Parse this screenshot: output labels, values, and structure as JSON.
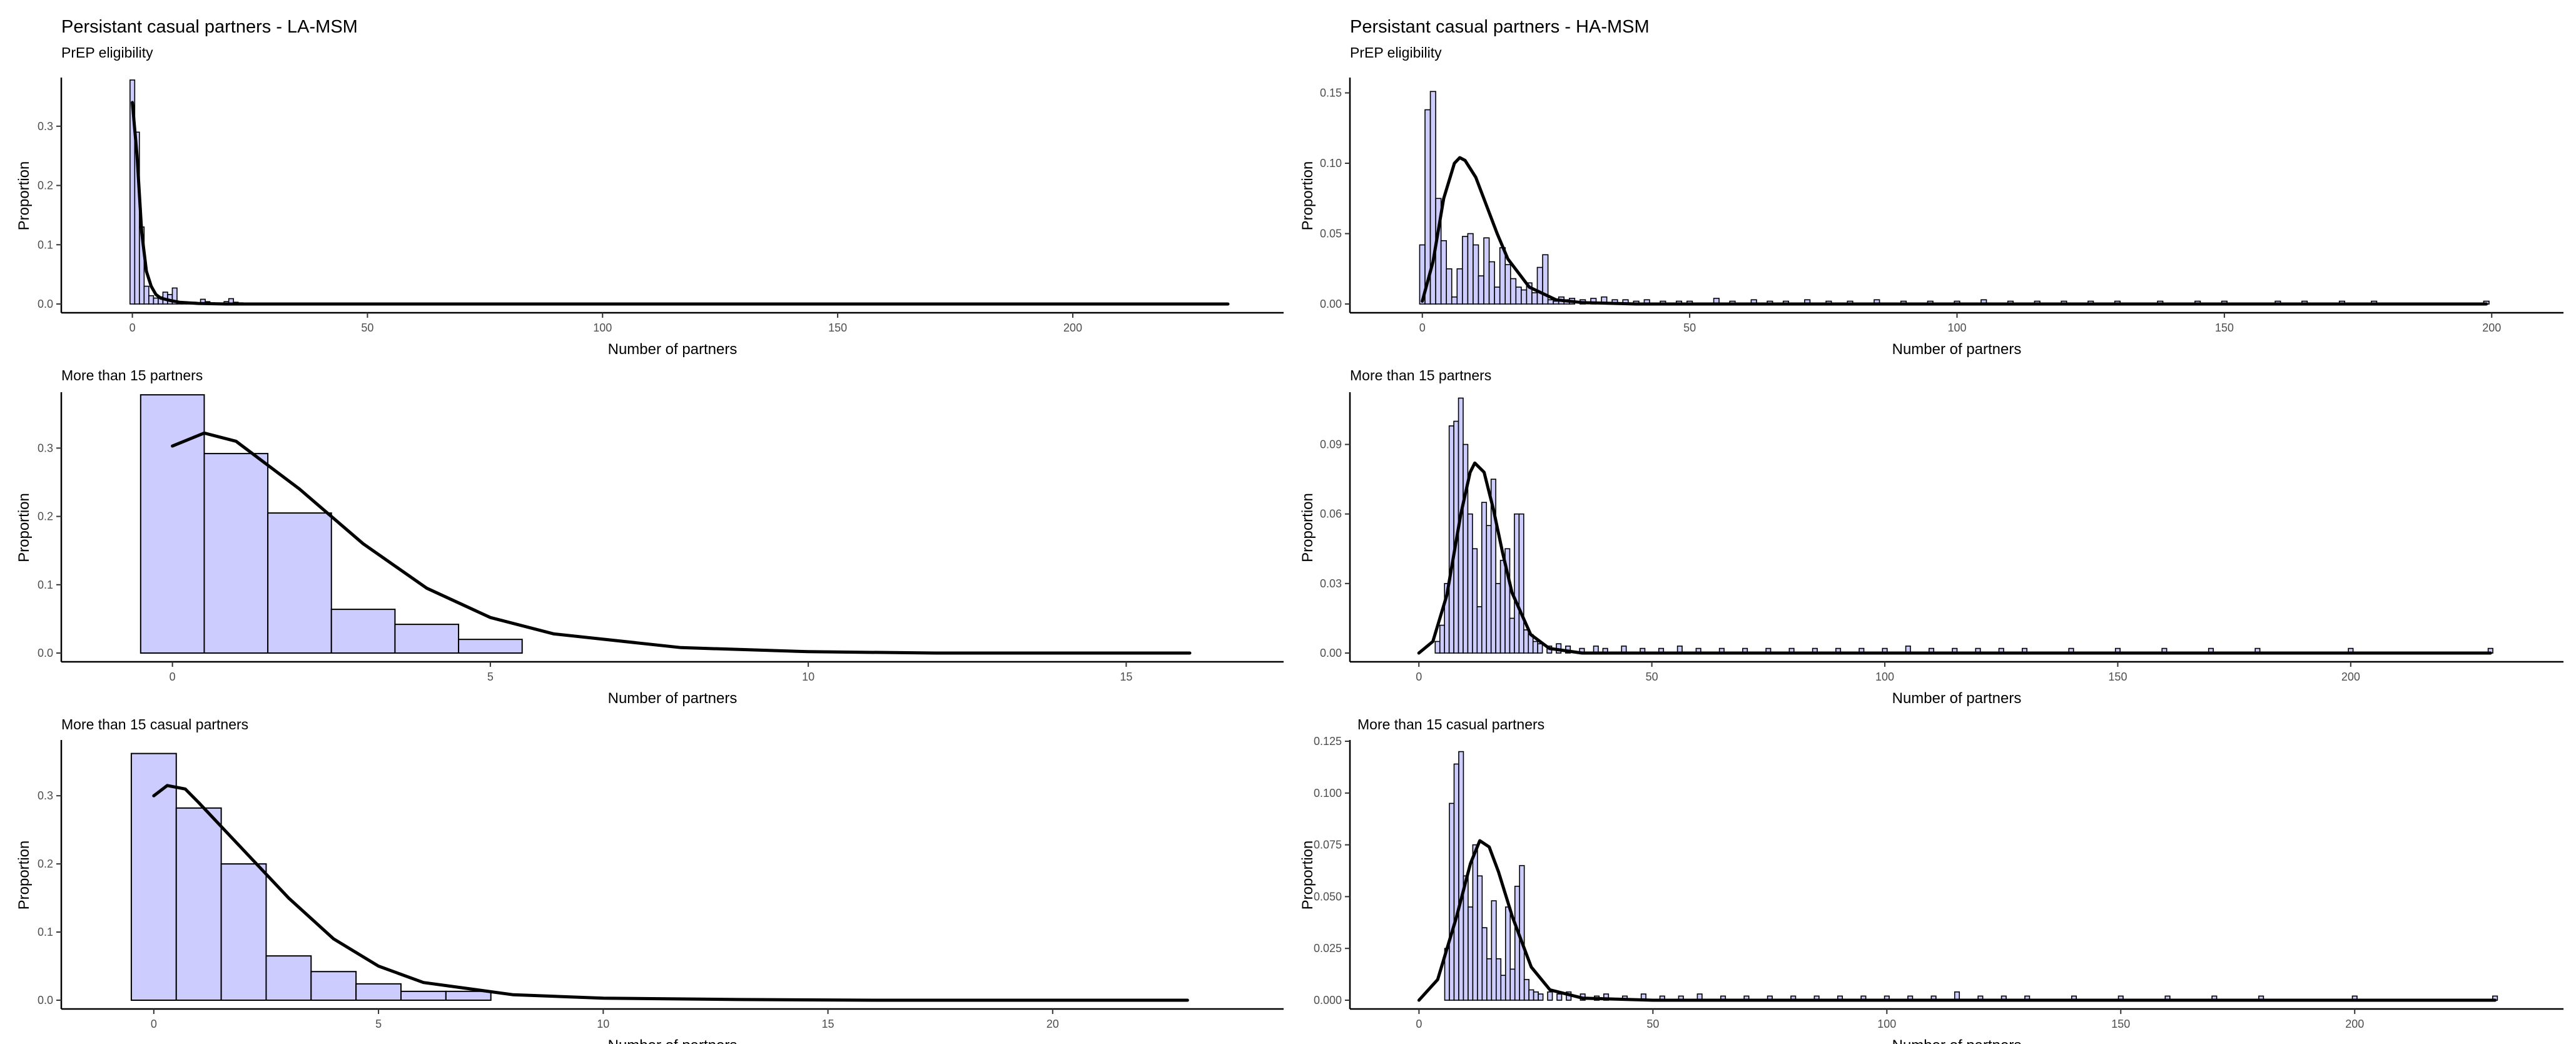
{
  "chart_data": [
    {
      "type": "bar",
      "title": "Persistant casual partners - LA-MSM",
      "subtitle": "PrEP eligibility",
      "xlabel": "Number of partners",
      "ylabel": "Proportion",
      "xlim": [
        -5,
        233
      ],
      "ylim": [
        0,
        0.38
      ],
      "xticks": [
        0,
        50,
        100,
        150,
        200
      ],
      "yticks": [
        0.0,
        0.1,
        0.2,
        0.3
      ],
      "yticklabels": [
        "0.0",
        "0.1",
        "0.2",
        "0.3"
      ],
      "x": [
        0,
        1,
        2,
        3,
        4,
        5,
        6,
        7,
        8,
        9,
        10,
        11,
        12,
        13,
        14,
        15,
        16,
        17,
        18,
        19,
        20,
        21,
        22,
        23,
        24,
        25
      ],
      "values": [
        0.378,
        0.29,
        0.13,
        0.03,
        0.014,
        0.01,
        0.012,
        0.02,
        0.016,
        0.027,
        0.004,
        0.003,
        0.002,
        0.003,
        0.002,
        0.008,
        0.004,
        0.002,
        0.001,
        0.0,
        0.004,
        0.009,
        0.003,
        0.002,
        0.001,
        0.0
      ],
      "curve": {
        "x": [
          0,
          1,
          2,
          3,
          4,
          5,
          6,
          8,
          10,
          14,
          20,
          40,
          80,
          150,
          233
        ],
        "y": [
          0.34,
          0.25,
          0.12,
          0.055,
          0.03,
          0.016,
          0.01,
          0.006,
          0.003,
          0.001,
          0.0,
          0.0,
          0.0,
          0.0,
          0.0
        ]
      }
    },
    {
      "type": "bar",
      "title": "Persistant casual partners - HA-MSM",
      "subtitle": "PrEP eligibility",
      "xlabel": "Number of partners",
      "ylabel": "Proportion",
      "xlim": [
        -5,
        205
      ],
      "ylim": [
        0,
        0.16
      ],
      "xticks": [
        0,
        50,
        100,
        150,
        200
      ],
      "yticks": [
        0.0,
        0.05,
        0.1,
        0.15
      ],
      "yticklabels": [
        "0.00",
        "0.05",
        "0.10",
        "0.15"
      ],
      "x": [
        0,
        1,
        2,
        3,
        4,
        5,
        6,
        7,
        8,
        9,
        10,
        11,
        12,
        13,
        14,
        15,
        16,
        17,
        18,
        19,
        20,
        21,
        22,
        23,
        24,
        25,
        26,
        27,
        28,
        30,
        32,
        34,
        36,
        38,
        40,
        42,
        45,
        48,
        50,
        55,
        58,
        62,
        65,
        68,
        72,
        76,
        80,
        85,
        90,
        95,
        100,
        105,
        110,
        115,
        120,
        125,
        130,
        138,
        145,
        150,
        160,
        165,
        172,
        178,
        199
      ],
      "values": [
        0.042,
        0.138,
        0.151,
        0.075,
        0.045,
        0.025,
        0.005,
        0.025,
        0.048,
        0.05,
        0.042,
        0.02,
        0.047,
        0.03,
        0.012,
        0.04,
        0.028,
        0.018,
        0.012,
        0.01,
        0.015,
        0.008,
        0.026,
        0.035,
        0.003,
        0.002,
        0.005,
        0.003,
        0.004,
        0.003,
        0.004,
        0.005,
        0.003,
        0.003,
        0.002,
        0.003,
        0.002,
        0.002,
        0.002,
        0.004,
        0.002,
        0.003,
        0.002,
        0.002,
        0.003,
        0.002,
        0.002,
        0.003,
        0.002,
        0.002,
        0.002,
        0.003,
        0.002,
        0.002,
        0.002,
        0.002,
        0.002,
        0.002,
        0.002,
        0.002,
        0.002,
        0.002,
        0.002,
        0.002,
        0.002
      ],
      "curve": {
        "x": [
          0,
          2,
          4,
          6,
          7,
          8,
          10,
          12,
          14,
          16,
          20,
          25,
          30,
          40,
          60,
          100,
          150,
          199
        ],
        "y": [
          0.002,
          0.03,
          0.075,
          0.1,
          0.104,
          0.102,
          0.09,
          0.07,
          0.05,
          0.032,
          0.012,
          0.003,
          0.001,
          0.0,
          0.0,
          0.0,
          0.0,
          0.0
        ]
      }
    },
    {
      "type": "bar",
      "subtitle": "More than 15 partners",
      "xlabel": "Number of partners",
      "ylabel": "Proportion",
      "xlim": [
        -1.0,
        16.6
      ],
      "ylim": [
        0,
        0.38
      ],
      "xticks": [
        0,
        5,
        10,
        15
      ],
      "yticks": [
        0.0,
        0.1,
        0.2,
        0.3
      ],
      "yticklabels": [
        "0.0",
        "0.1",
        "0.2",
        "0.3"
      ],
      "x": [
        0,
        1,
        2,
        3,
        4,
        5
      ],
      "values": [
        0.378,
        0.292,
        0.205,
        0.064,
        0.042,
        0.02
      ],
      "curve": {
        "x": [
          0,
          0.5,
          1,
          2,
          3,
          4,
          5,
          6,
          8,
          10,
          12,
          16
        ],
        "y": [
          0.303,
          0.322,
          0.31,
          0.24,
          0.16,
          0.095,
          0.052,
          0.028,
          0.008,
          0.002,
          0.0,
          0.0
        ]
      }
    },
    {
      "type": "bar",
      "subtitle": "More than 15 partners",
      "xlabel": "Number of partners",
      "ylabel": "Proportion",
      "xlim": [
        -5,
        236
      ],
      "ylim": [
        0,
        0.112
      ],
      "xticks": [
        0,
        50,
        100,
        150,
        200
      ],
      "yticks": [
        0.0,
        0.03,
        0.06,
        0.09
      ],
      "yticklabels": [
        "0.00",
        "0.03",
        "0.06",
        "0.09"
      ],
      "x": [
        4,
        5,
        6,
        7,
        8,
        9,
        10,
        11,
        12,
        13,
        14,
        15,
        16,
        17,
        18,
        19,
        20,
        21,
        22,
        23,
        24,
        25,
        26,
        28,
        30,
        32,
        35,
        38,
        40,
        44,
        48,
        52,
        56,
        60,
        65,
        70,
        75,
        80,
        85,
        90,
        95,
        100,
        105,
        110,
        115,
        120,
        125,
        130,
        140,
        150,
        160,
        170,
        180,
        200,
        230
      ],
      "values": [
        0.005,
        0.012,
        0.03,
        0.098,
        0.1,
        0.11,
        0.09,
        0.06,
        0.045,
        0.02,
        0.065,
        0.055,
        0.075,
        0.03,
        0.04,
        0.045,
        0.015,
        0.06,
        0.06,
        0.01,
        0.008,
        0.005,
        0.004,
        0.003,
        0.004,
        0.003,
        0.002,
        0.003,
        0.002,
        0.003,
        0.002,
        0.002,
        0.003,
        0.002,
        0.002,
        0.002,
        0.002,
        0.002,
        0.002,
        0.002,
        0.002,
        0.002,
        0.003,
        0.002,
        0.002,
        0.002,
        0.002,
        0.002,
        0.002,
        0.002,
        0.002,
        0.002,
        0.002,
        0.002,
        0.002
      ],
      "curve": {
        "x": [
          0,
          3,
          6,
          9,
          11,
          12,
          14,
          16,
          18,
          20,
          24,
          28,
          35,
          50,
          100,
          230
        ],
        "y": [
          0.0,
          0.005,
          0.025,
          0.06,
          0.078,
          0.082,
          0.078,
          0.062,
          0.043,
          0.026,
          0.008,
          0.002,
          0.0,
          0.0,
          0.0,
          0.0
        ]
      }
    },
    {
      "type": "bar",
      "subtitle": "More than 15 casual partners",
      "xlabel": "Number of partners",
      "ylabel": "Proportion",
      "xlim": [
        -1.0,
        23.9
      ],
      "ylim": [
        0,
        0.38
      ],
      "xticks": [
        0,
        5,
        10,
        15,
        20
      ],
      "yticks": [
        0.0,
        0.1,
        0.2,
        0.3
      ],
      "yticklabels": [
        "0.0",
        "0.1",
        "0.2",
        "0.3"
      ],
      "x": [
        0,
        1,
        2,
        3,
        4,
        5,
        6,
        7
      ],
      "values": [
        0.362,
        0.282,
        0.2,
        0.065,
        0.042,
        0.024,
        0.013,
        0.013
      ],
      "curve": {
        "x": [
          0,
          0.3,
          0.7,
          1,
          2,
          3,
          4,
          5,
          6,
          8,
          10,
          13,
          16,
          23
        ],
        "y": [
          0.3,
          0.315,
          0.31,
          0.29,
          0.22,
          0.15,
          0.09,
          0.05,
          0.026,
          0.008,
          0.003,
          0.001,
          0.0,
          0.0
        ]
      }
    },
    {
      "type": "bar",
      "subtitle": "More than 15 casual partners",
      "xlabel": "Number of partners",
      "ylabel": "Proportion",
      "xlim": [
        -5,
        235
      ],
      "ylim": [
        0,
        0.125
      ],
      "xticks": [
        0,
        50,
        100,
        150,
        200
      ],
      "yticks": [
        0.0,
        0.025,
        0.05,
        0.075,
        0.1,
        0.125
      ],
      "yticklabels": [
        "0.000",
        "0.025",
        "0.050",
        "0.075",
        "0.100",
        "0.125"
      ],
      "x": [
        6,
        7,
        8,
        9,
        10,
        11,
        12,
        13,
        14,
        15,
        16,
        17,
        18,
        19,
        20,
        21,
        22,
        23,
        24,
        25,
        26,
        28,
        30,
        32,
        35,
        38,
        40,
        44,
        48,
        52,
        56,
        60,
        65,
        70,
        75,
        80,
        85,
        90,
        95,
        100,
        105,
        110,
        115,
        120,
        125,
        130,
        140,
        150,
        160,
        170,
        180,
        200,
        230
      ],
      "values": [
        0.025,
        0.095,
        0.114,
        0.12,
        0.06,
        0.045,
        0.075,
        0.06,
        0.035,
        0.02,
        0.048,
        0.02,
        0.012,
        0.045,
        0.015,
        0.055,
        0.065,
        0.01,
        0.005,
        0.004,
        0.003,
        0.004,
        0.003,
        0.004,
        0.003,
        0.002,
        0.003,
        0.002,
        0.003,
        0.002,
        0.002,
        0.003,
        0.002,
        0.002,
        0.002,
        0.002,
        0.002,
        0.002,
        0.002,
        0.002,
        0.002,
        0.002,
        0.004,
        0.002,
        0.002,
        0.002,
        0.002,
        0.002,
        0.002,
        0.002,
        0.002,
        0.002,
        0.002
      ],
      "curve": {
        "x": [
          0,
          4,
          8,
          11,
          13,
          15,
          17,
          20,
          24,
          28,
          35,
          50,
          100,
          230
        ],
        "y": [
          0.0,
          0.01,
          0.04,
          0.066,
          0.077,
          0.074,
          0.062,
          0.04,
          0.016,
          0.005,
          0.001,
          0.0,
          0.0,
          0.0
        ]
      }
    }
  ]
}
